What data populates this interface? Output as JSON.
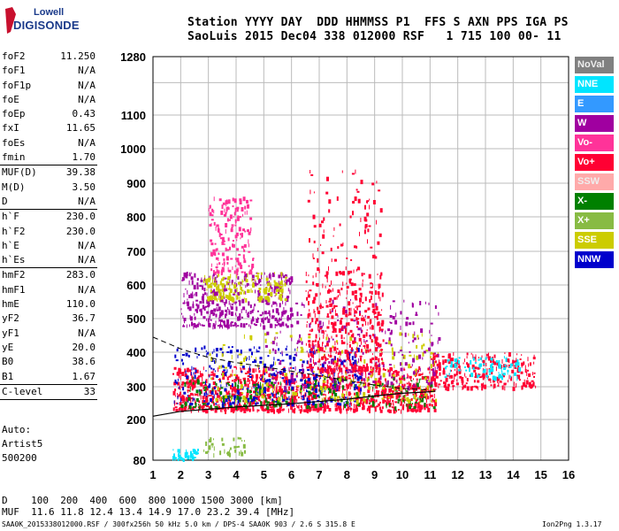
{
  "logo": {
    "line1": "Lowell",
    "line2": "DIGISONDE"
  },
  "header": {
    "line1": "Station YYYY DAY  DDD HHMMSS P1  FFS S AXN PPS IGA PS",
    "line2": "SaoLuis 2015 Dec04 338 012000 RSF   1 715 100 00- 11"
  },
  "params": [
    {
      "name": "foF2",
      "value": "11.250"
    },
    {
      "name": "foF1",
      "value": "N/A"
    },
    {
      "name": "foF1p",
      "value": "N/A"
    },
    {
      "name": "foE",
      "value": "N/A"
    },
    {
      "name": "foEp",
      "value": "0.43"
    },
    {
      "name": "fxI",
      "value": "11.65"
    },
    {
      "name": "foEs",
      "value": "N/A"
    },
    {
      "name": "fmin",
      "value": "1.70"
    },
    {
      "sep": true
    },
    {
      "name": "MUF(D)",
      "value": "39.38"
    },
    {
      "name": "M(D)",
      "value": "3.50"
    },
    {
      "name": "D",
      "value": "N/A"
    },
    {
      "sep": true
    },
    {
      "name": "h`F",
      "value": "230.0"
    },
    {
      "name": "h`F2",
      "value": "230.0"
    },
    {
      "name": "h`E",
      "value": "N/A"
    },
    {
      "name": "h`Es",
      "value": "N/A"
    },
    {
      "sep": true
    },
    {
      "name": "hmF2",
      "value": "283.0"
    },
    {
      "name": "hmF1",
      "value": "N/A"
    },
    {
      "name": "hmE",
      "value": "110.0"
    },
    {
      "name": "yF2",
      "value": "36.7"
    },
    {
      "name": "yF1",
      "value": "N/A"
    },
    {
      "name": "yE",
      "value": "20.0"
    },
    {
      "name": "B0",
      "value": "38.6"
    },
    {
      "name": "B1",
      "value": "1.67"
    },
    {
      "sep": true
    },
    {
      "name": "C-level",
      "value": "33"
    },
    {
      "sep": true
    }
  ],
  "extra": [
    "Auto:",
    "Artist5",
    "500200"
  ],
  "legend": [
    {
      "label": "NoVal",
      "color": "#808080"
    },
    {
      "label": "NNE",
      "color": "#00e5ff"
    },
    {
      "label": "E",
      "color": "#3399ff"
    },
    {
      "label": "W",
      "color": "#a000a0"
    },
    {
      "label": "Vo-",
      "color": "#ff3399"
    },
    {
      "label": "Vo+",
      "color": "#ff0033"
    },
    {
      "label": "SSW",
      "color": "#ffaaaa"
    },
    {
      "label": "X-",
      "color": "#008000"
    },
    {
      "label": "X+",
      "color": "#88bb44"
    },
    {
      "label": "SSE",
      "color": "#cccc00"
    },
    {
      "label": "NNW",
      "color": "#0000cc"
    }
  ],
  "bottom": {
    "dist_line": "D    100  200  400  600  800 1000 1500 3000 [km]",
    "muf_line": "MUF  11.6 11.8 12.4 13.4 14.9 17.0 23.2 39.4 [MHz]"
  },
  "footer": {
    "left": "SAA0K_2015338012000.RSF / 300fx256h 50 kHz 5.0 km / DPS-4 SAA0K 903 / 2.6 S 315.8 E",
    "right": "Ion2Png 1.3.17"
  },
  "chart_data": {
    "type": "scatter",
    "title": "",
    "xlabel": "",
    "ylabel": "",
    "xlim": [
      1,
      16
    ],
    "ylim": [
      80,
      1280
    ],
    "y_scale": "nonlinear",
    "xticks": [
      1,
      2,
      3,
      4,
      5,
      6,
      7,
      8,
      9,
      10,
      11,
      12,
      13,
      14,
      15,
      16
    ],
    "yticks": [
      80,
      200,
      300,
      400,
      500,
      600,
      700,
      800,
      900,
      1000,
      1100,
      1280
    ],
    "grid": true,
    "legend_position": "right",
    "virtual_height_trace": [
      [
        1.0,
        210
      ],
      [
        2.0,
        225
      ],
      [
        4.0,
        238
      ],
      [
        6.0,
        248
      ],
      [
        8.0,
        262
      ],
      [
        9.0,
        272
      ],
      [
        10.0,
        280
      ],
      [
        11.0,
        285
      ],
      [
        11.2,
        287
      ]
    ],
    "dashed_trace": [
      [
        1.0,
        445
      ],
      [
        2.0,
        410
      ],
      [
        3.0,
        385
      ],
      [
        4.0,
        370
      ],
      [
        5.0,
        358
      ],
      [
        6.0,
        345
      ],
      [
        7.0,
        332
      ],
      [
        8.0,
        318
      ],
      [
        9.0,
        305
      ],
      [
        10.0,
        295
      ],
      [
        11.0,
        290
      ]
    ],
    "clusters": [
      {
        "name": "F trace",
        "fmin": 1.7,
        "fmax": 11.2,
        "hmin": 230,
        "hmax": 360,
        "color": "#ff0033",
        "density": 1200
      },
      {
        "name": "F trace blue",
        "fmin": 1.7,
        "fmax": 8.5,
        "hmin": 250,
        "hmax": 420,
        "color": "#0000cc",
        "density": 350
      },
      {
        "name": "F trace green",
        "fmin": 2.0,
        "fmax": 11.2,
        "hmin": 240,
        "hmax": 330,
        "color": "#008000",
        "density": 220
      },
      {
        "name": "F trace yellow",
        "fmin": 3.0,
        "fmax": 11.3,
        "hmin": 260,
        "hmax": 460,
        "color": "#cccc00",
        "density": 240
      },
      {
        "name": "F trace magenta",
        "fmin": 5.0,
        "fmax": 11.3,
        "hmin": 300,
        "hmax": 560,
        "color": "#a000a0",
        "density": 260
      },
      {
        "name": "spread F",
        "fmin": 6.5,
        "fmax": 9.3,
        "hmin": 350,
        "hmax": 640,
        "color": "#ff0033",
        "density": 420
      },
      {
        "name": "2nd hop",
        "fmin": 2.0,
        "fmax": 6.0,
        "hmin": 480,
        "hmax": 640,
        "color": "#a000a0",
        "density": 420
      },
      {
        "name": "2nd hop yellow",
        "fmin": 2.8,
        "fmax": 5.8,
        "hmin": 560,
        "hmax": 640,
        "color": "#cccc00",
        "density": 180
      },
      {
        "name": "3rd hop",
        "fmin": 3.0,
        "fmax": 4.6,
        "hmin": 640,
        "hmax": 860,
        "color": "#ff3399",
        "density": 180
      },
      {
        "name": "high spread",
        "fmin": 6.5,
        "fmax": 9.2,
        "hmin": 640,
        "hmax": 940,
        "color": "#ff0033",
        "density": 90
      },
      {
        "name": "far tail",
        "fmin": 11.0,
        "fmax": 14.8,
        "hmin": 300,
        "hmax": 400,
        "color": "#ff0033",
        "density": 260
      },
      {
        "name": "far tail cyan",
        "fmin": 11.5,
        "fmax": 14.2,
        "hmin": 330,
        "hmax": 390,
        "color": "#00e5ff",
        "density": 80
      },
      {
        "name": "E echoes",
        "fmin": 1.7,
        "fmax": 2.6,
        "hmin": 85,
        "hmax": 115,
        "color": "#00e5ff",
        "density": 40
      },
      {
        "name": "E echoes green",
        "fmin": 2.8,
        "fmax": 4.4,
        "hmin": 100,
        "hmax": 150,
        "color": "#88bb44",
        "density": 40
      }
    ]
  }
}
